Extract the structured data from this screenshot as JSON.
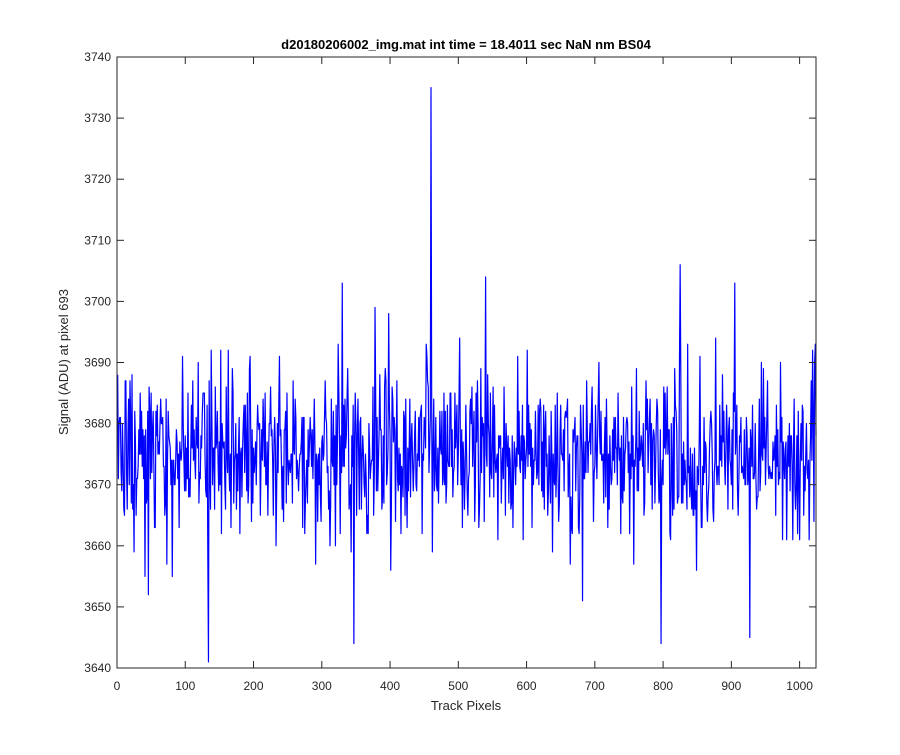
{
  "chart_data": {
    "type": "line",
    "title": "d20180206002_img.mat int time = 18.4011 sec  NaN nm BS04",
    "xlabel": "Track Pixels",
    "ylabel": "Signal (ADU) at pixel 693",
    "xlim": [
      0,
      1024
    ],
    "ylim": [
      3640,
      3740
    ],
    "xticks": [
      0,
      100,
      200,
      300,
      400,
      500,
      600,
      700,
      800,
      900,
      1000
    ],
    "xtick_labels": [
      "0",
      "100",
      "200",
      "300",
      "400",
      "500",
      "600",
      "700",
      "800",
      "900",
      "1000"
    ],
    "yticks": [
      3640,
      3650,
      3660,
      3670,
      3680,
      3690,
      3700,
      3710,
      3720,
      3730,
      3740
    ],
    "ytick_labels": [
      "3640",
      "3650",
      "3660",
      "3670",
      "3680",
      "3690",
      "3700",
      "3710",
      "3720",
      "3730",
      "3740"
    ],
    "grid": false,
    "box": true,
    "line_color": "#0000ff",
    "series": [
      {
        "x_start": 1,
        "x_step": 1,
        "y_baseline": 3675,
        "y_noise_sd": 7,
        "y_min": 3641,
        "y_max": 3735,
        "peaks": [
          {
            "x": 134,
            "y": 3641
          },
          {
            "x": 330,
            "y": 3703
          },
          {
            "x": 347,
            "y": 3644
          },
          {
            "x": 378,
            "y": 3699
          },
          {
            "x": 460,
            "y": 3735
          },
          {
            "x": 462,
            "y": 3659
          },
          {
            "x": 540,
            "y": 3704
          },
          {
            "x": 682,
            "y": 3651
          },
          {
            "x": 797,
            "y": 3644
          },
          {
            "x": 825,
            "y": 3706
          },
          {
            "x": 905,
            "y": 3703
          },
          {
            "x": 927,
            "y": 3645
          }
        ]
      }
    ]
  }
}
